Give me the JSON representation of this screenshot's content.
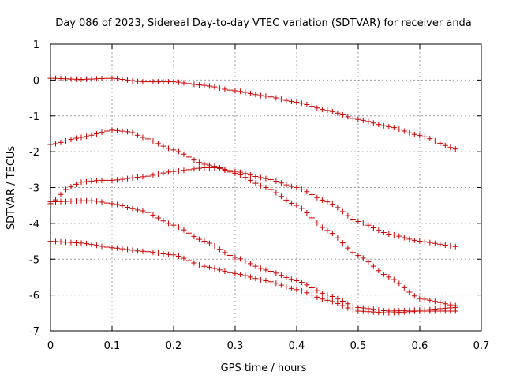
{
  "chart_data": {
    "type": "scatter",
    "title": "Day 086 of 2023, Sidereal Day-to-day VTEC variation (SDTVAR) for receiver anda",
    "xlabel": "GPS time / hours",
    "ylabel": "SDTVAR / TECUs",
    "xlim": [
      0,
      0.7
    ],
    "ylim": [
      -7,
      1
    ],
    "xticks": [
      "0",
      "0.1",
      "0.2",
      "0.3",
      "0.4",
      "0.5",
      "0.6",
      "0.7"
    ],
    "yticks": [
      "1",
      "0",
      "-1",
      "-2",
      "-3",
      "-4",
      "-5",
      "-6",
      "-7"
    ],
    "grid": true,
    "marker": "plus",
    "color": "#cc0000",
    "series": [
      {
        "name": "series-1",
        "x": [
          0,
          0.05,
          0.1,
          0.15,
          0.2,
          0.25,
          0.3,
          0.35,
          0.4,
          0.45,
          0.5,
          0.55,
          0.6,
          0.66
        ],
        "y": [
          0.05,
          0.02,
          0.05,
          -0.05,
          -0.05,
          -0.15,
          -0.3,
          -0.45,
          -0.62,
          -0.85,
          -1.1,
          -1.3,
          -1.55,
          -1.93
        ]
      },
      {
        "name": "series-2",
        "x": [
          0,
          0.05,
          0.1,
          0.13,
          0.15,
          0.2,
          0.25,
          0.3,
          0.35,
          0.4,
          0.45,
          0.5,
          0.55,
          0.6,
          0.66
        ],
        "y": [
          -1.8,
          -1.6,
          -1.4,
          -1.45,
          -1.6,
          -1.95,
          -2.35,
          -2.55,
          -2.75,
          -3.0,
          -3.4,
          -3.95,
          -4.3,
          -4.5,
          -4.65
        ]
      },
      {
        "name": "series-3",
        "x": [
          0,
          0.03,
          0.05,
          0.08,
          0.1,
          0.15,
          0.2,
          0.25,
          0.27,
          0.3,
          0.35,
          0.4,
          0.45,
          0.5,
          0.55,
          0.6,
          0.66
        ],
        "y": [
          -3.45,
          -3.0,
          -2.85,
          -2.8,
          -2.8,
          -2.7,
          -2.55,
          -2.45,
          -2.45,
          -2.6,
          -3.0,
          -3.5,
          -4.2,
          -4.9,
          -5.5,
          -6.1,
          -6.3
        ]
      },
      {
        "name": "series-4",
        "x": [
          0,
          0.05,
          0.07,
          0.1,
          0.15,
          0.2,
          0.25,
          0.3,
          0.35,
          0.4,
          0.45,
          0.5,
          0.55,
          0.6,
          0.66
        ],
        "y": [
          -3.4,
          -3.37,
          -3.37,
          -3.45,
          -3.65,
          -4.05,
          -4.5,
          -4.95,
          -5.3,
          -5.6,
          -6.0,
          -6.35,
          -6.45,
          -6.42,
          -6.35
        ]
      },
      {
        "name": "series-5",
        "x": [
          0,
          0.05,
          0.1,
          0.15,
          0.2,
          0.25,
          0.3,
          0.35,
          0.4,
          0.45,
          0.5,
          0.55,
          0.6,
          0.66
        ],
        "y": [
          -4.5,
          -4.55,
          -4.68,
          -4.78,
          -4.88,
          -5.2,
          -5.4,
          -5.6,
          -5.85,
          -6.15,
          -6.45,
          -6.5,
          -6.45,
          -6.45
        ]
      }
    ]
  }
}
